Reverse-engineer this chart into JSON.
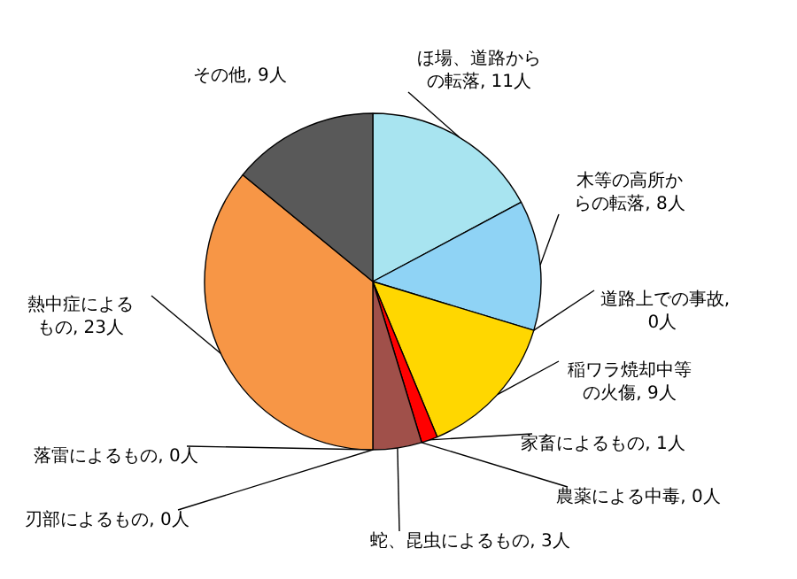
{
  "chart_data": {
    "type": "pie",
    "categories": [
      "ほ場、道路からの転落, 11人",
      "木等の高所からの転落, 8人",
      "道路上での事故, 0人",
      "稲ワラ焼却中等の火傷, 9人",
      "家畜によるもの, 1人",
      "農薬による中毒, 0人",
      "蛇、昆虫によるもの, 3人",
      "刃部によるもの, 0人",
      "落雷によるもの, 0人",
      "熱中症によるもの, 23人",
      "その他, 9人"
    ],
    "values": [
      11,
      8,
      0,
      9,
      1,
      0,
      3,
      0,
      0,
      23,
      9
    ],
    "colors": [
      "#a8e4f0",
      "#8fd3f5",
      "#d9d9d9",
      "#ffd700",
      "#ff0000",
      "#ffffff",
      "#a0504a",
      "#ffffff",
      "#ffffff",
      "#f79646",
      "#595959"
    ]
  }
}
